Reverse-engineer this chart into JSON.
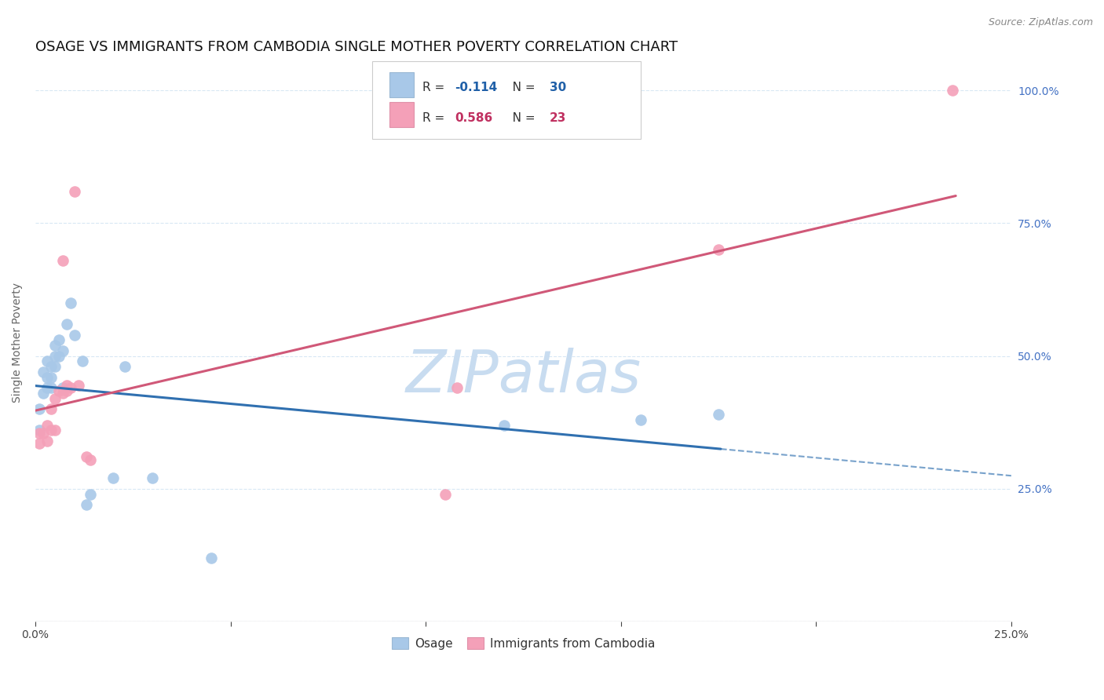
{
  "title": "OSAGE VS IMMIGRANTS FROM CAMBODIA SINGLE MOTHER POVERTY CORRELATION CHART",
  "source": "Source: ZipAtlas.com",
  "ylabel": "Single Mother Poverty",
  "xlim": [
    0.0,
    0.25
  ],
  "ylim": [
    0.0,
    1.05
  ],
  "yticks": [
    0.0,
    0.25,
    0.5,
    0.75,
    1.0
  ],
  "xticks": [
    0.0,
    0.05,
    0.1,
    0.15,
    0.2,
    0.25
  ],
  "osage_R": -0.114,
  "osage_N": 30,
  "cambodia_R": 0.586,
  "cambodia_N": 23,
  "osage_color": "#A8C8E8",
  "cambodia_color": "#F4A0B8",
  "osage_line_color": "#3070B0",
  "cambodia_line_color": "#D05878",
  "osage_x": [
    0.001,
    0.001,
    0.002,
    0.002,
    0.003,
    0.003,
    0.003,
    0.004,
    0.004,
    0.004,
    0.005,
    0.005,
    0.005,
    0.006,
    0.006,
    0.007,
    0.007,
    0.008,
    0.009,
    0.01,
    0.012,
    0.013,
    0.014,
    0.02,
    0.023,
    0.03,
    0.045,
    0.12,
    0.155,
    0.175
  ],
  "osage_y": [
    0.36,
    0.4,
    0.43,
    0.47,
    0.44,
    0.46,
    0.49,
    0.44,
    0.46,
    0.48,
    0.48,
    0.5,
    0.52,
    0.5,
    0.53,
    0.44,
    0.51,
    0.56,
    0.6,
    0.54,
    0.49,
    0.22,
    0.24,
    0.27,
    0.48,
    0.27,
    0.12,
    0.37,
    0.38,
    0.39
  ],
  "cambodia_x": [
    0.001,
    0.001,
    0.002,
    0.003,
    0.003,
    0.004,
    0.004,
    0.005,
    0.005,
    0.006,
    0.007,
    0.007,
    0.008,
    0.008,
    0.009,
    0.01,
    0.011,
    0.013,
    0.014,
    0.105,
    0.108,
    0.175,
    0.235
  ],
  "cambodia_y": [
    0.335,
    0.355,
    0.355,
    0.34,
    0.37,
    0.36,
    0.4,
    0.36,
    0.42,
    0.435,
    0.43,
    0.68,
    0.445,
    0.435,
    0.44,
    0.81,
    0.445,
    0.31,
    0.305,
    0.24,
    0.44,
    0.7,
    1.0
  ],
  "watermark": "ZIPatlas",
  "watermark_color": "#C8DCF0",
  "legend_osage_label": "Osage",
  "legend_cambodia_label": "Immigrants from Cambodia",
  "background_color": "#ffffff",
  "grid_color": "#D8E8F4",
  "title_fontsize": 13,
  "axis_label_fontsize": 10,
  "tick_fontsize": 10,
  "legend_fontsize": 11,
  "source_fontsize": 9
}
